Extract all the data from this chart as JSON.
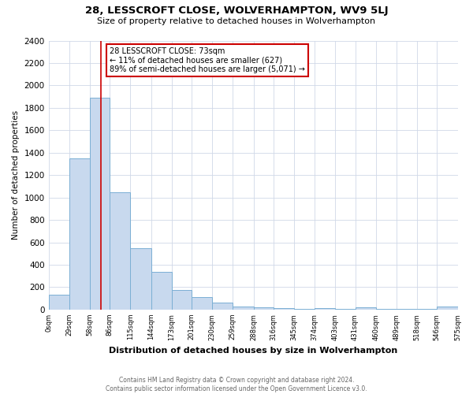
{
  "title": "28, LESSCROFT CLOSE, WOLVERHAMPTON, WV9 5LJ",
  "subtitle": "Size of property relative to detached houses in Wolverhampton",
  "xlabel": "Distribution of detached houses by size in Wolverhampton",
  "ylabel": "Number of detached properties",
  "bar_color": "#c8d9ee",
  "bar_edge_color": "#7bafd4",
  "bin_labels": [
    "0sqm",
    "29sqm",
    "58sqm",
    "86sqm",
    "115sqm",
    "144sqm",
    "173sqm",
    "201sqm",
    "230sqm",
    "259sqm",
    "288sqm",
    "316sqm",
    "345sqm",
    "374sqm",
    "403sqm",
    "431sqm",
    "460sqm",
    "489sqm",
    "518sqm",
    "546sqm",
    "575sqm"
  ],
  "bar_heights": [
    130,
    1350,
    1890,
    1050,
    550,
    340,
    175,
    115,
    60,
    30,
    20,
    15,
    10,
    15,
    10,
    20,
    5,
    5,
    5,
    25
  ],
  "ylim": [
    0,
    2400
  ],
  "yticks": [
    0,
    200,
    400,
    600,
    800,
    1000,
    1200,
    1400,
    1600,
    1800,
    2000,
    2200,
    2400
  ],
  "vline_x": 73,
  "vline_color": "#cc0000",
  "annotation_title": "28 LESSCROFT CLOSE: 73sqm",
  "annotation_line1": "← 11% of detached houses are smaller (627)",
  "annotation_line2": "89% of semi-detached houses are larger (5,071) →",
  "annotation_box_color": "#ffffff",
  "annotation_box_edge": "#cc0000",
  "footer_line1": "Contains HM Land Registry data © Crown copyright and database right 2024.",
  "footer_line2": "Contains public sector information licensed under the Open Government Licence v3.0.",
  "background_color": "#ffffff",
  "grid_color": "#d0d8e8"
}
